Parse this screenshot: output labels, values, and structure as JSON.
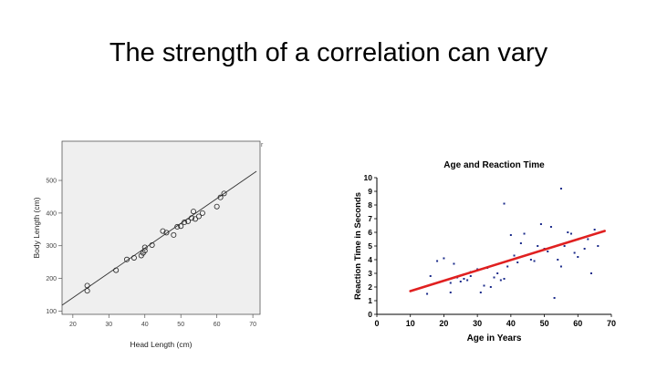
{
  "slide": {
    "title": "The strength of a correlation can vary"
  },
  "chart_data": [
    {
      "type": "scatter",
      "title": "",
      "xlabel": "Head Length (cm)",
      "ylabel": "Body Length (cm)",
      "xlim": [
        17,
        72
      ],
      "ylim": [
        90,
        620
      ],
      "xticks": [
        "20",
        "30",
        "40",
        "50",
        "60",
        "70"
      ],
      "yticks": [
        "100",
        "200",
        "300",
        "400",
        "500"
      ],
      "grid": false,
      "corner_mark": "r",
      "points": [
        [
          24,
          162
        ],
        [
          24,
          178
        ],
        [
          32,
          225
        ],
        [
          35,
          258
        ],
        [
          37,
          263
        ],
        [
          39,
          270
        ],
        [
          39.5,
          278
        ],
        [
          40,
          285
        ],
        [
          40,
          295
        ],
        [
          42,
          302
        ],
        [
          45,
          345
        ],
        [
          46,
          340
        ],
        [
          48,
          333
        ],
        [
          49,
          358
        ],
        [
          50,
          360
        ],
        [
          51,
          372
        ],
        [
          52,
          375
        ],
        [
          53,
          385
        ],
        [
          53.5,
          405
        ],
        [
          54,
          382
        ],
        [
          55,
          390
        ],
        [
          56,
          400
        ],
        [
          60,
          420
        ],
        [
          61,
          448
        ],
        [
          62,
          460
        ]
      ],
      "fit_line": {
        "x": [
          17,
          71
        ],
        "y": [
          118,
          528
        ]
      }
    },
    {
      "type": "scatter",
      "title": "Age and Reaction Time",
      "xlabel": "Age in Years",
      "ylabel": "Reaction Time in Seconds",
      "xlim": [
        0,
        70
      ],
      "ylim": [
        0,
        10
      ],
      "xticks": [
        "0",
        "10",
        "20",
        "30",
        "40",
        "50",
        "60",
        "70"
      ],
      "yticks": [
        "0",
        "1",
        "2",
        "3",
        "4",
        "5",
        "6",
        "7",
        "8",
        "9",
        "10"
      ],
      "grid": false,
      "points": [
        [
          15,
          1.5
        ],
        [
          16,
          2.8
        ],
        [
          18,
          3.9
        ],
        [
          20,
          4.1
        ],
        [
          22,
          1.6
        ],
        [
          22,
          2.3
        ],
        [
          23,
          3.7
        ],
        [
          24,
          2.7
        ],
        [
          25,
          2.4
        ],
        [
          26,
          2.6
        ],
        [
          27,
          2.5
        ],
        [
          28,
          3.1
        ],
        [
          28,
          2.8
        ],
        [
          30,
          3.3
        ],
        [
          31,
          1.6
        ],
        [
          32,
          2.1
        ],
        [
          33,
          3.4
        ],
        [
          34,
          2.0
        ],
        [
          35,
          2.7
        ],
        [
          36,
          3.0
        ],
        [
          37,
          2.5
        ],
        [
          38,
          2.6
        ],
        [
          38,
          8.1
        ],
        [
          39,
          3.5
        ],
        [
          40,
          5.8
        ],
        [
          41,
          4.3
        ],
        [
          42,
          3.8
        ],
        [
          43,
          5.2
        ],
        [
          44,
          5.9
        ],
        [
          46,
          4.0
        ],
        [
          47,
          3.9
        ],
        [
          48,
          5.0
        ],
        [
          49,
          6.6
        ],
        [
          50,
          4.8
        ],
        [
          51,
          4.6
        ],
        [
          52,
          6.4
        ],
        [
          53,
          1.2
        ],
        [
          54,
          4.0
        ],
        [
          55,
          3.5
        ],
        [
          55,
          9.2
        ],
        [
          56,
          5.0
        ],
        [
          57,
          6.0
        ],
        [
          58,
          5.9
        ],
        [
          59,
          4.5
        ],
        [
          60,
          4.2
        ],
        [
          62,
          4.8
        ],
        [
          63,
          5.5
        ],
        [
          64,
          3.0
        ],
        [
          65,
          6.2
        ],
        [
          66,
          5.0
        ]
      ],
      "fit_line": {
        "x": [
          10,
          68
        ],
        "y": [
          1.7,
          6.1
        ],
        "color": "#e02020"
      }
    }
  ]
}
